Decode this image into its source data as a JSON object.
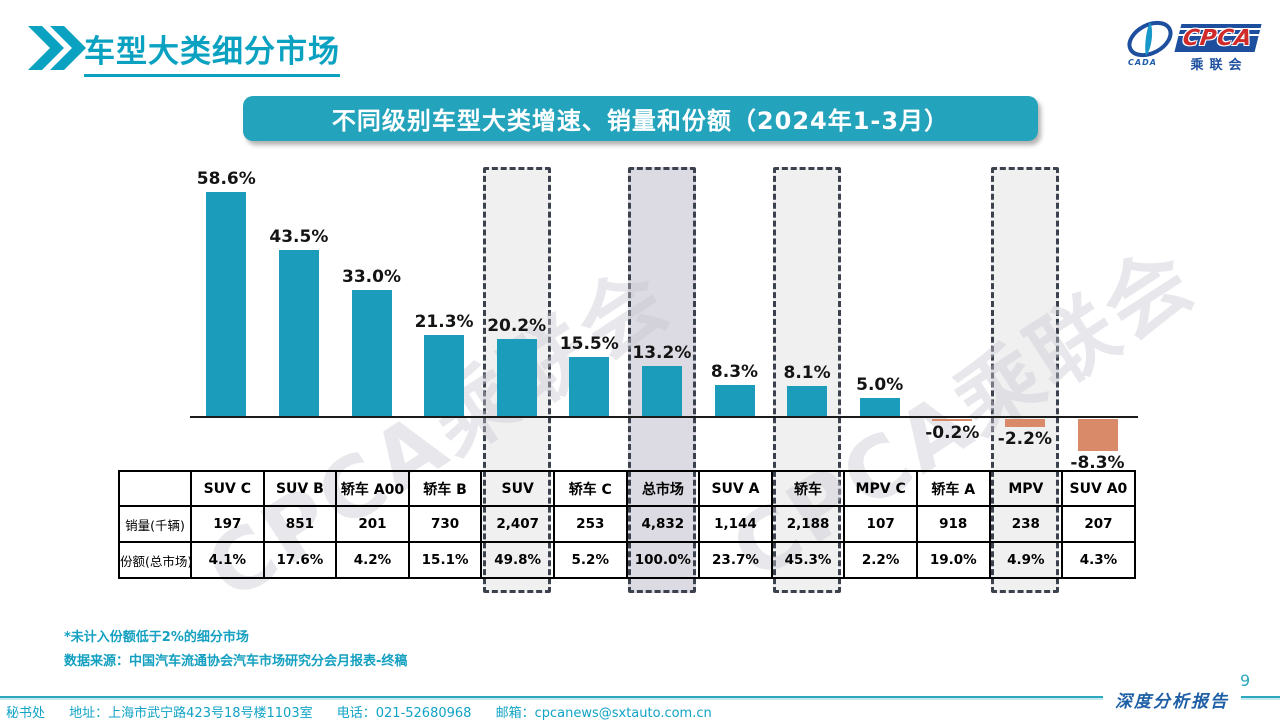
{
  "header": {
    "title": "车型大类细分市场"
  },
  "logo": {
    "cpca": "CPCA",
    "cada": "CADA",
    "cn": "乘联会"
  },
  "banner": {
    "title": "不同级别车型大类增速、销量和份额（2024年1-3月）"
  },
  "chart_data": {
    "type": "bar",
    "title": "不同级别车型大类增速、销量和份额（2024年1-3月）",
    "categories": [
      "SUV C",
      "SUV B",
      "轿车 A00",
      "轿车 B",
      "SUV",
      "轿车 C",
      "总市场",
      "SUV A",
      "轿车",
      "MPV C",
      "轿车 A",
      "MPV",
      "SUV A0"
    ],
    "series": [
      {
        "name": "增速",
        "unit": "%",
        "values": [
          58.6,
          43.5,
          33.0,
          21.3,
          20.2,
          15.5,
          13.2,
          8.3,
          8.1,
          5.0,
          -0.2,
          -2.2,
          -8.3
        ]
      },
      {
        "name": "销量(千辆)",
        "values": [
          197,
          851,
          201,
          730,
          2407,
          253,
          4832,
          1144,
          2188,
          107,
          918,
          238,
          207
        ]
      },
      {
        "name": "份额(总市场)",
        "unit": "%",
        "values": [
          4.1,
          17.6,
          4.2,
          15.1,
          49.8,
          5.2,
          100.0,
          23.7,
          45.3,
          2.2,
          19.0,
          4.9,
          4.3
        ]
      }
    ],
    "growth_labels": [
      "58.6%",
      "43.5%",
      "33.0%",
      "21.3%",
      "20.2%",
      "15.5%",
      "13.2%",
      "8.3%",
      "8.1%",
      "5.0%",
      "-0.2%",
      "-2.2%",
      "-8.3%"
    ],
    "sales_labels": [
      "197",
      "851",
      "201",
      "730",
      "2,407",
      "253",
      "4,832",
      "1,144",
      "2,188",
      "107",
      "918",
      "238",
      "207"
    ],
    "share_labels": [
      "4.1%",
      "17.6%",
      "4.2%",
      "15.1%",
      "49.8%",
      "5.2%",
      "100.0%",
      "23.7%",
      "45.3%",
      "2.2%",
      "19.0%",
      "4.9%",
      "4.3%"
    ],
    "highlights": [
      {
        "index": 4,
        "fill": "#F0F0F1"
      },
      {
        "index": 6,
        "fill": "#DCDAE2"
      },
      {
        "index": 8,
        "fill": "#F0F0F1"
      },
      {
        "index": 11,
        "fill": "#F0F0F1"
      }
    ],
    "bar_colors": {
      "positive": "#1B9CBA",
      "negative": "#D98A68"
    },
    "ylim": [
      -10,
      62
    ],
    "grid": false,
    "legend": "none"
  },
  "table": {
    "row_labels": [
      "销量(千辆)",
      "份额(总市场)"
    ]
  },
  "notes": {
    "note1": "*未计入份额低于2%的细分市场",
    "source": "数据来源：中国汽车流通协会汽车市场研究分会月报表-终稿"
  },
  "footer": {
    "secretariat": "秘书处",
    "address": "地址：上海市武宁路423号18号楼1103室",
    "phone": "电话：021-52680968",
    "email": "邮箱：cpcanews@sxtauto.com.cn",
    "report": "深度分析报告",
    "page": "9"
  },
  "watermark": {
    "text": "CPCA乘联会"
  }
}
